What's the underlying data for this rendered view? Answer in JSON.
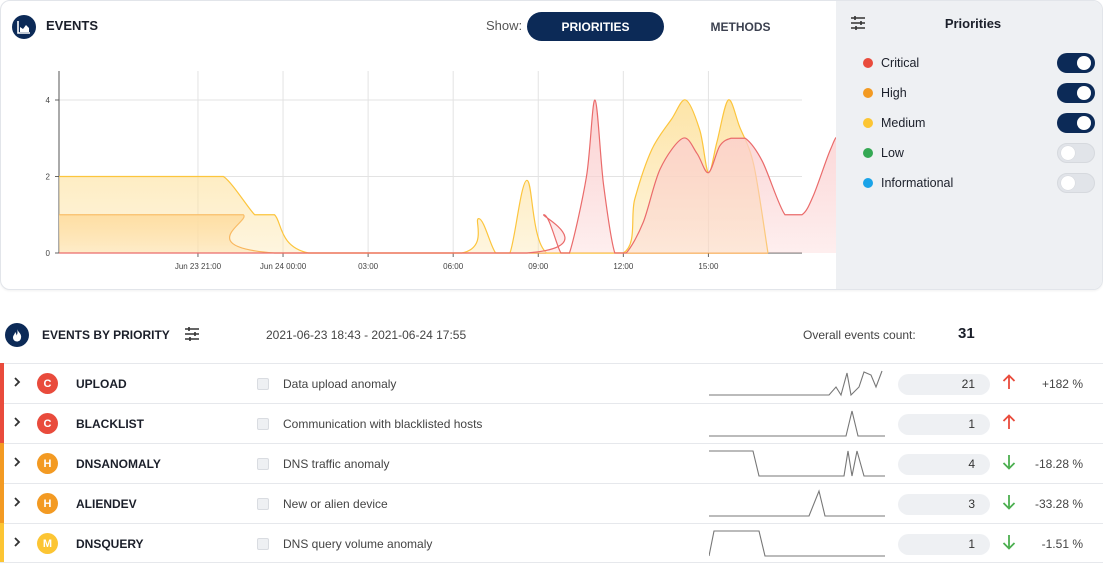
{
  "events": {
    "title": "EVENTS",
    "show_label": "Show:",
    "toggle_priorities": "PRIORITIES",
    "toggle_methods": "METHODS",
    "selected_toggle": "PRIORITIES"
  },
  "chart_data": {
    "type": "area",
    "x_tick_labels": [
      "Jun 23 21:00",
      "Jun 24 00:00",
      "03:00",
      "06:00",
      "09:00",
      "12:00",
      "15:00"
    ],
    "y_tick_labels": [
      "0",
      "2",
      "4"
    ],
    "ylim": [
      0,
      4.6
    ],
    "xlim_hours_from_jun23": [
      16.1,
      42.3
    ],
    "grid": true,
    "series": [
      {
        "name": "High",
        "color": "#f59a32",
        "fill": "#ffd8a0",
        "points": [
          [
            16.1,
            1
          ],
          [
            21.0,
            1
          ],
          [
            21.1,
            1
          ],
          [
            21.9,
            1
          ],
          [
            22.6,
            1
          ],
          [
            23.7,
            0
          ],
          [
            41.1,
            0
          ]
        ]
      },
      {
        "name": "Medium",
        "color": "#fcc53d",
        "fill": "#fde3a3",
        "points": [
          [
            16.1,
            2
          ],
          [
            21.0,
            2
          ],
          [
            21.9,
            2
          ],
          [
            23.0,
            1
          ],
          [
            23.3,
            1
          ],
          [
            23.7,
            1
          ],
          [
            24.9,
            0
          ],
          [
            30.3,
            0
          ],
          [
            30.9,
            0.9
          ],
          [
            31.5,
            0
          ],
          [
            32.0,
            0
          ],
          [
            32.6,
            1.9
          ],
          [
            33.3,
            0
          ],
          [
            36.0,
            0
          ],
          [
            36.4,
            1.4
          ],
          [
            37.0,
            2.7
          ],
          [
            37.7,
            3.5
          ],
          [
            38.2,
            4
          ],
          [
            38.7,
            3.2
          ],
          [
            39.0,
            2.1
          ],
          [
            39.3,
            2.9
          ],
          [
            39.7,
            4
          ],
          [
            40.1,
            3.3
          ],
          [
            40.6,
            2.3
          ],
          [
            41.1,
            0
          ]
        ]
      },
      {
        "name": "Critical",
        "color": "#ea6b6b",
        "fill": "#fbcfcf",
        "points": [
          [
            16.1,
            0
          ],
          [
            32.6,
            0
          ],
          [
            33.2,
            1
          ],
          [
            33.8,
            0
          ],
          [
            34.1,
            0
          ],
          [
            34.7,
            2
          ],
          [
            35.0,
            4
          ],
          [
            35.3,
            1.8
          ],
          [
            35.7,
            0
          ],
          [
            36.1,
            0
          ],
          [
            36.7,
            0.8
          ],
          [
            37.3,
            2.2
          ],
          [
            38.1,
            3
          ],
          [
            38.6,
            2.6
          ],
          [
            39.0,
            2.1
          ],
          [
            39.4,
            2.8
          ],
          [
            39.8,
            3
          ],
          [
            40.3,
            3
          ],
          [
            40.9,
            2.4
          ],
          [
            41.7,
            1
          ],
          [
            42.3,
            1
          ],
          [
            42.7,
            1.5
          ],
          [
            43.3,
            2.7
          ],
          [
            43.6,
            3
          ],
          [
            44.0,
            2.1
          ],
          [
            44.3,
            0
          ]
        ]
      }
    ]
  },
  "legend": {
    "title": "Priorities",
    "items": [
      {
        "label": "Critical",
        "color": "#e94b3c",
        "enabled": true
      },
      {
        "label": "High",
        "color": "#f39a22",
        "enabled": true
      },
      {
        "label": "Medium",
        "color": "#fcc533",
        "enabled": true
      },
      {
        "label": "Low",
        "color": "#34a853",
        "enabled": false
      },
      {
        "label": "Informational",
        "color": "#1aa3e8",
        "enabled": false
      }
    ]
  },
  "priority": {
    "title": "EVENTS BY PRIORITY",
    "date_range": "2021-06-23 18:43 - 2021-06-24 17:55",
    "overall_label": "Overall events count:",
    "overall_count": "31"
  },
  "rows": [
    {
      "badge": "C",
      "severity": "critical",
      "name": "UPLOAD",
      "desc": "Data upload anomaly",
      "count": "21",
      "trend": "up",
      "pct": "+182 %",
      "spark": [
        [
          0,
          28
        ],
        [
          120,
          28
        ],
        [
          127,
          20
        ],
        [
          132,
          28
        ],
        [
          138,
          6
        ],
        [
          142,
          28
        ],
        [
          150,
          20
        ],
        [
          155,
          5
        ],
        [
          162,
          8
        ],
        [
          167,
          20
        ],
        [
          173,
          4
        ]
      ]
    },
    {
      "badge": "C",
      "severity": "critical",
      "name": "BLACKLIST",
      "desc": "Communication with blacklisted hosts",
      "count": "1",
      "trend": "up",
      "pct": "",
      "spark": [
        [
          0,
          29
        ],
        [
          137,
          29
        ],
        [
          143,
          4
        ],
        [
          149,
          29
        ],
        [
          176,
          29
        ]
      ]
    },
    {
      "badge": "H",
      "severity": "high",
      "name": "DNSANOMALY",
      "desc": "DNS traffic anomaly",
      "count": "4",
      "trend": "down",
      "pct": "-18.28 %",
      "spark": [
        [
          0,
          4
        ],
        [
          44,
          4
        ],
        [
          50,
          29
        ],
        [
          135,
          29
        ],
        [
          139,
          4
        ],
        [
          143,
          29
        ],
        [
          148,
          4
        ],
        [
          155,
          29
        ],
        [
          176,
          29
        ]
      ]
    },
    {
      "badge": "H",
      "severity": "high",
      "name": "ALIENDEV",
      "desc": "New or alien device",
      "count": "3",
      "trend": "down",
      "pct": "-33.28 %",
      "spark": [
        [
          0,
          29
        ],
        [
          100,
          29
        ],
        [
          110,
          4
        ],
        [
          116,
          29
        ],
        [
          176,
          29
        ]
      ]
    },
    {
      "badge": "M",
      "severity": "medium",
      "name": "DNSQUERY",
      "desc": "DNS query volume anomaly",
      "count": "1",
      "trend": "down",
      "pct": "-1.51 %",
      "spark": [
        [
          0,
          29
        ],
        [
          5,
          4
        ],
        [
          50,
          4
        ],
        [
          56,
          29
        ],
        [
          176,
          29
        ]
      ]
    }
  ],
  "colors": {
    "critical": "#e94b3c",
    "high": "#f39a22",
    "medium": "#fcc533",
    "navy": "#0c2a57"
  },
  "icons": {
    "events": "area-chart-icon",
    "priority": "flame-icon",
    "filter": "sliders-icon",
    "expand": "chevron-right-icon",
    "trend_up": "arrow-up-icon",
    "trend_down": "arrow-down-icon"
  }
}
